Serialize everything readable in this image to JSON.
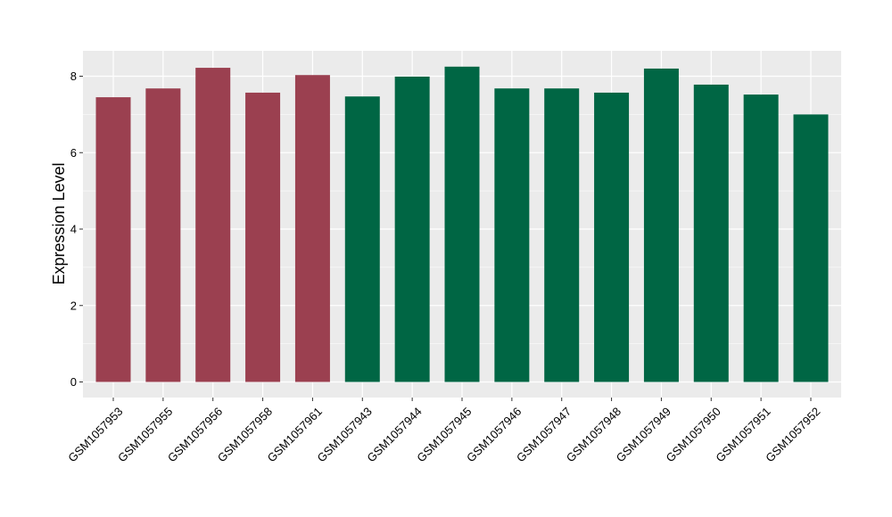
{
  "chart_data": {
    "type": "bar",
    "title": "",
    "xlabel": "",
    "ylabel": "Expression Level",
    "ylim": [
      0,
      8.4
    ],
    "yticks": [
      0,
      2,
      4,
      6,
      8
    ],
    "grid": true,
    "legend": "none",
    "categories": [
      "GSM1057953",
      "GSM1057955",
      "GSM1057956",
      "GSM1057958",
      "GSM1057961",
      "GSM1057943",
      "GSM1057944",
      "GSM1057945",
      "GSM1057946",
      "GSM1057947",
      "GSM1057948",
      "GSM1057949",
      "GSM1057950",
      "GSM1057951",
      "GSM1057952"
    ],
    "values": [
      7.45,
      7.68,
      8.22,
      7.57,
      8.03,
      7.47,
      7.99,
      8.25,
      7.68,
      7.68,
      7.57,
      8.2,
      7.78,
      7.52,
      7.0
    ],
    "bar_colors": [
      "#9b4050",
      "#9b4050",
      "#9b4050",
      "#9b4050",
      "#9b4050",
      "#006644",
      "#006644",
      "#006644",
      "#006644",
      "#006644",
      "#006644",
      "#006644",
      "#006644",
      "#006644",
      "#006644"
    ],
    "panel_background": "#ebebeb",
    "grid_color": "#ffffff"
  }
}
